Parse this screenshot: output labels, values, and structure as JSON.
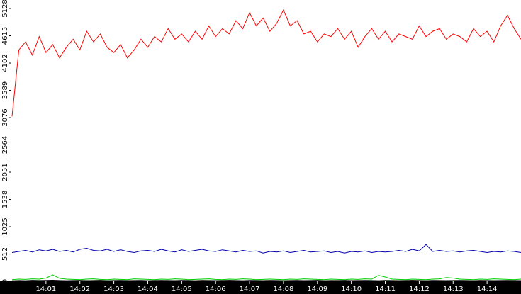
{
  "chart_data": {
    "type": "line",
    "x": [
      0,
      0.2,
      0.4,
      0.6,
      0.8,
      1,
      1.2,
      1.4,
      1.6,
      1.8,
      2,
      2.2,
      2.4,
      2.6,
      2.8,
      3,
      3.2,
      3.4,
      3.6,
      3.8,
      4,
      4.2,
      4.4,
      4.6,
      4.8,
      5,
      5.2,
      5.4,
      5.6,
      5.8,
      6,
      6.2,
      6.4,
      6.6,
      6.8,
      7,
      7.2,
      7.4,
      7.6,
      7.8,
      8,
      8.2,
      8.4,
      8.6,
      8.8,
      9,
      9.2,
      9.4,
      9.6,
      9.8,
      10,
      10.2,
      10.4,
      10.6,
      10.8,
      11,
      11.2,
      11.4,
      11.6,
      11.8,
      12,
      12.2,
      12.4,
      12.6,
      12.8,
      13,
      13.2,
      13.4,
      13.6,
      13.8,
      14,
      14.2,
      14.4,
      14.6,
      14.8,
      15
    ],
    "series": [
      {
        "color": "#ff0000",
        "values": [
          3100,
          4350,
          4500,
          4250,
          4600,
          4300,
          4450,
          4200,
          4400,
          4550,
          4350,
          4700,
          4500,
          4650,
          4400,
          4300,
          4450,
          4200,
          4350,
          4550,
          4400,
          4600,
          4500,
          4750,
          4550,
          4650,
          4500,
          4700,
          4550,
          4800,
          4600,
          4750,
          4650,
          4900,
          4750,
          5050,
          4800,
          4950,
          4700,
          4850,
          5100,
          4800,
          4900,
          4650,
          4700,
          4500,
          4650,
          4600,
          4750,
          4550,
          4700,
          4400,
          4600,
          4750,
          4550,
          4700,
          4500,
          4650,
          4600,
          4550,
          4800,
          4600,
          4700,
          4750,
          4550,
          4650,
          4600,
          4500,
          4750,
          4600,
          4700,
          4500,
          4800,
          5000,
          4750,
          4550
        ]
      },
      {
        "color": "#0000aa",
        "values": [
          540,
          560,
          580,
          550,
          590,
          570,
          600,
          560,
          580,
          550,
          600,
          620,
          580,
          570,
          600,
          560,
          590,
          560,
          540,
          570,
          580,
          560,
          600,
          570,
          550,
          590,
          560,
          580,
          600,
          570,
          560,
          590,
          570,
          550,
          580,
          560,
          570,
          530,
          560,
          550,
          570,
          540,
          560,
          580,
          550,
          560,
          570,
          540,
          560,
          530,
          560,
          550,
          570,
          540,
          560,
          550,
          560,
          580,
          560,
          600,
          570,
          690,
          560,
          580,
          560,
          570,
          550,
          570,
          580,
          560,
          540,
          560,
          550,
          570,
          560,
          540
        ]
      },
      {
        "color": "#00cc00",
        "values": [
          30,
          40,
          35,
          45,
          40,
          60,
          120,
          55,
          40,
          35,
          30,
          40,
          45,
          35,
          30,
          40,
          35,
          30,
          45,
          40,
          35,
          30,
          40,
          35,
          45,
          40,
          30,
          35,
          40,
          45,
          35,
          30,
          40,
          35,
          45,
          40,
          30,
          35,
          40,
          35,
          30,
          40,
          35,
          45,
          40,
          35,
          30,
          40,
          35,
          30,
          40,
          35,
          45,
          40,
          110,
          80,
          40,
          35,
          30,
          40,
          35,
          30,
          40,
          45,
          70,
          60,
          40,
          35,
          30,
          40,
          35,
          45,
          40,
          35,
          30,
          40
        ]
      },
      {
        "color": "#000000",
        "values": [
          10,
          15,
          12,
          18,
          14,
          16,
          20,
          15,
          12,
          14,
          16,
          13,
          15,
          18,
          12,
          14,
          16,
          13,
          15,
          17,
          12,
          14,
          16,
          15,
          13,
          17,
          14,
          12,
          16,
          15,
          13,
          15,
          18,
          14,
          12,
          16,
          15,
          13,
          17,
          14,
          12,
          15,
          16,
          13,
          14,
          18,
          12,
          15,
          14,
          16,
          13,
          15,
          17,
          14,
          12,
          16,
          15,
          13,
          14,
          18,
          15,
          12,
          16,
          14,
          13,
          15,
          17,
          14,
          12,
          16,
          15,
          13,
          14,
          16,
          15,
          13
        ]
      }
    ],
    "xlim": [
      0,
      15
    ],
    "ylim": [
      0,
      5128
    ],
    "yticks": [
      0,
      512,
      1025,
      1538,
      2051,
      2564,
      3076,
      3589,
      4102,
      4615,
      5128
    ],
    "xticks": [
      {
        "value": 1,
        "label": "14:01"
      },
      {
        "value": 2,
        "label": "14:02"
      },
      {
        "value": 3,
        "label": "14:03"
      },
      {
        "value": 4,
        "label": "14:04"
      },
      {
        "value": 5,
        "label": "14:05"
      },
      {
        "value": 6,
        "label": "14:06"
      },
      {
        "value": 7,
        "label": "14:07"
      },
      {
        "value": 8,
        "label": "14:08"
      },
      {
        "value": 9,
        "label": "14:09"
      },
      {
        "value": 10,
        "label": "14:10"
      },
      {
        "value": 11,
        "label": "14:11"
      },
      {
        "value": 12,
        "label": "14:12"
      },
      {
        "value": 13,
        "label": "14:13"
      },
      {
        "value": 14,
        "label": "14:14"
      }
    ]
  }
}
